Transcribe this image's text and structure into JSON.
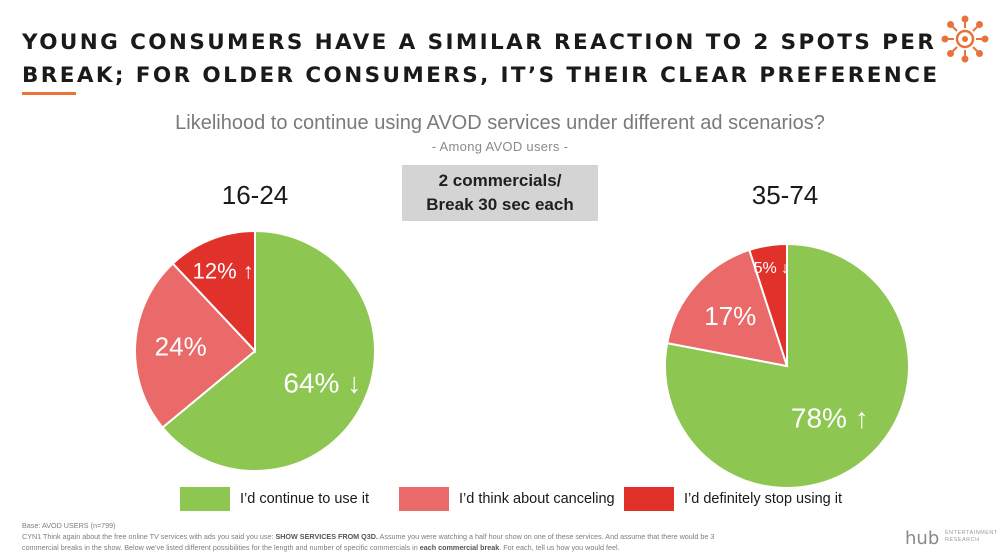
{
  "title_line1": "YOUNG CONSUMERS HAVE A SIMILAR REACTION TO 2 SPOTS PER",
  "title_line2": "BREAK; FOR OLDER CONSUMERS, IT’S THEIR CLEAR PREFERENCE",
  "subtitle": "Likelihood to continue using AVOD services under different ad scenarios?",
  "subsubtitle": "- Among AVOD users -",
  "scenario_line1": "2 commercials/",
  "scenario_line2": "Break 30 sec each",
  "colors": {
    "continue": "#8dc751",
    "think": "#ea6a6a",
    "stop": "#e1312b",
    "accent": "#e8733a"
  },
  "icons": {
    "logo": "sun-network-icon",
    "brand": "hub-logo"
  },
  "chart_data": [
    {
      "type": "pie",
      "title": "16-24",
      "slices": [
        {
          "name": "I’d continue to use it",
          "value": 64,
          "label": "64% ↓"
        },
        {
          "name": "I’d think about canceling",
          "value": 24,
          "label": "24%"
        },
        {
          "name": "I’d definitely stop using it",
          "value": 12,
          "label": "12% ↑"
        }
      ]
    },
    {
      "type": "pie",
      "title": "35-74",
      "slices": [
        {
          "name": "I’d continue to use it",
          "value": 78,
          "label": "78% ↑"
        },
        {
          "name": "I’d think about canceling",
          "value": 17,
          "label": "17%"
        },
        {
          "name": "I’d definitely stop using it",
          "value": 5,
          "label": "5% ↓"
        }
      ]
    }
  ],
  "legend": [
    "I’d continue to use it",
    "I’d think about canceling",
    "I’d definitely stop using it"
  ],
  "footer": {
    "base": "Base: AVOD USERS (n=799)",
    "q_a": "CYN1 Think again about the free online TV services with ads you said you use: ",
    "q_b": "SHOW SERVICES FROM Q3D.",
    "q_c": "  Assume you were watching a half hour show on one of these services. And assume that there would be 3",
    "q_d": "commercial breaks in the show. Below we’ve listed different possibilities for the length and number of specific commercials in ",
    "q_e": "each commercial break",
    "q_f": ".  For each, tell us how you would feel."
  },
  "brand": {
    "main": "hub",
    "sub1": "ENTERTAINMENT",
    "sub2": "RESEARCH"
  }
}
